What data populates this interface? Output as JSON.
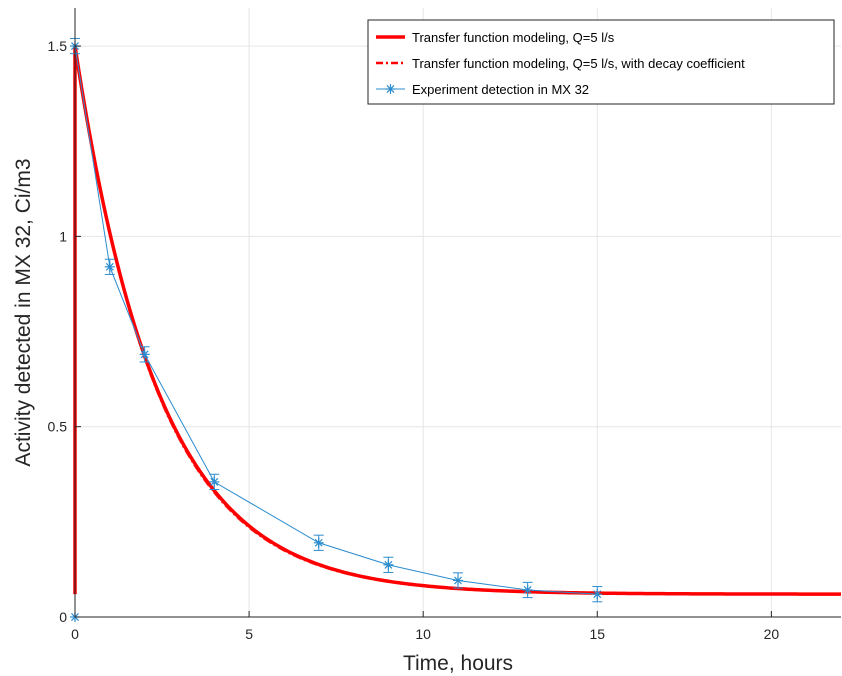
{
  "chart_data": {
    "type": "line",
    "title": "",
    "xlabel": "Time, hours",
    "ylabel": "Activity detected in MX 32, Ci/m3",
    "xlim": [
      0,
      22
    ],
    "ylim": [
      0,
      1.6
    ],
    "x_ticks": [
      0,
      5,
      10,
      15,
      20
    ],
    "y_ticks": [
      0,
      0.5,
      1,
      1.5
    ],
    "x_tick_labels": [
      "0",
      "5",
      "10",
      "15",
      "20"
    ],
    "y_tick_labels": [
      "0",
      "0.5",
      "1",
      "1.5"
    ],
    "grid": true,
    "legend_position": "top-right",
    "colors": {
      "model": "#ff0000",
      "model_decay": "#ff0000",
      "experiment": "#2b8ccf",
      "grid": "#e6e6e6",
      "axis": "#262626"
    },
    "series": [
      {
        "name": "Transfer function modeling, Q=5 l/s",
        "style": "solid",
        "model": {
          "baseline": 0.06,
          "amplitude": 1.44,
          "tau_hours": 2.4,
          "t_start": 0,
          "t_end": 22
        }
      },
      {
        "name": "Transfer function modeling, Q=5 l/s, with decay coefficient",
        "style": "dashdot",
        "model": {
          "baseline": 0.06,
          "amplitude": 1.44,
          "tau_hours": 2.37,
          "t_start": 0,
          "t_end": 22
        }
      },
      {
        "name": "Experiment detection in MX 32",
        "style": "marker-line",
        "x": [
          0,
          0,
          1,
          2,
          4,
          7,
          9,
          11,
          13,
          15
        ],
        "y": [
          0.0,
          1.5,
          0.92,
          0.69,
          0.355,
          0.195,
          0.137,
          0.096,
          0.071,
          0.06
        ],
        "error": [
          0,
          0.02,
          0.02,
          0.02,
          0.02,
          0.02,
          0.02,
          0.02,
          0.02,
          0.02
        ]
      }
    ]
  }
}
